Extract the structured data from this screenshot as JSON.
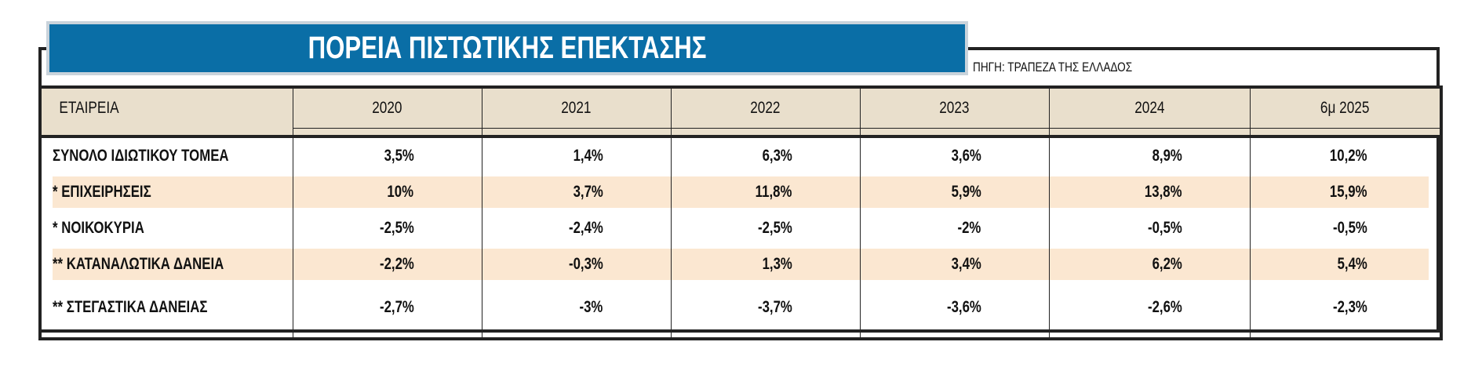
{
  "title": "ΠΟΡΕΙΑ ΠΙΣΤΩΤΙΚΗΣ ΕΠΕΚΤΑΣΗΣ",
  "source": "ΠΗΓΗ: ΤΡΑΠΕΖΑ ΤΗΣ ΕΛΛΑΔΟΣ",
  "colors": {
    "title_bar": "#0a6ea6",
    "header_bg": "#e9dfcc",
    "stripe_bg": "#fbe7d1",
    "border": "#222222"
  },
  "chart_data": {
    "type": "table",
    "columns": [
      "ΕΤΑΙΡΕΙΑ",
      "2020",
      "2021",
      "2022",
      "2023",
      "2024",
      "6μ 2025"
    ],
    "rows": [
      {
        "label": "ΣΥΝΟΛΟ ΙΔΙΩΤΙΚΟΥ ΤΟΜΕΑ",
        "values": [
          "3,5%",
          "1,4%",
          "6,3%",
          "3,6%",
          "8,9%",
          "10,2%"
        ]
      },
      {
        "label": "* ΕΠΙΧΕΙΡΗΣΕΙΣ",
        "values": [
          "10%",
          "3,7%",
          "11,8%",
          "5,9%",
          "13,8%",
          "15,9%"
        ]
      },
      {
        "label": "* ΝΟΙΚΟΚΥΡΙΑ",
        "values": [
          "-2,5%",
          "-2,4%",
          "-2,5%",
          "-2%",
          "-0,5%",
          "-0,5%"
        ]
      },
      {
        "label": "** ΚΑΤΑΝΑΛΩΤΙΚΑ ΔΑΝΕΙΑ",
        "values": [
          "-2,2%",
          "-0,3%",
          "1,3%",
          "3,4%",
          "6,2%",
          "5,4%"
        ]
      },
      {
        "label": "** ΣΤΕΓΑΣΤΙΚΑ ΔΑΝΕΙΑΣ",
        "values": [
          "-2,7%",
          "-3%",
          "-3,7%",
          "-3,6%",
          "-2,6%",
          "-2,3%"
        ]
      }
    ]
  }
}
